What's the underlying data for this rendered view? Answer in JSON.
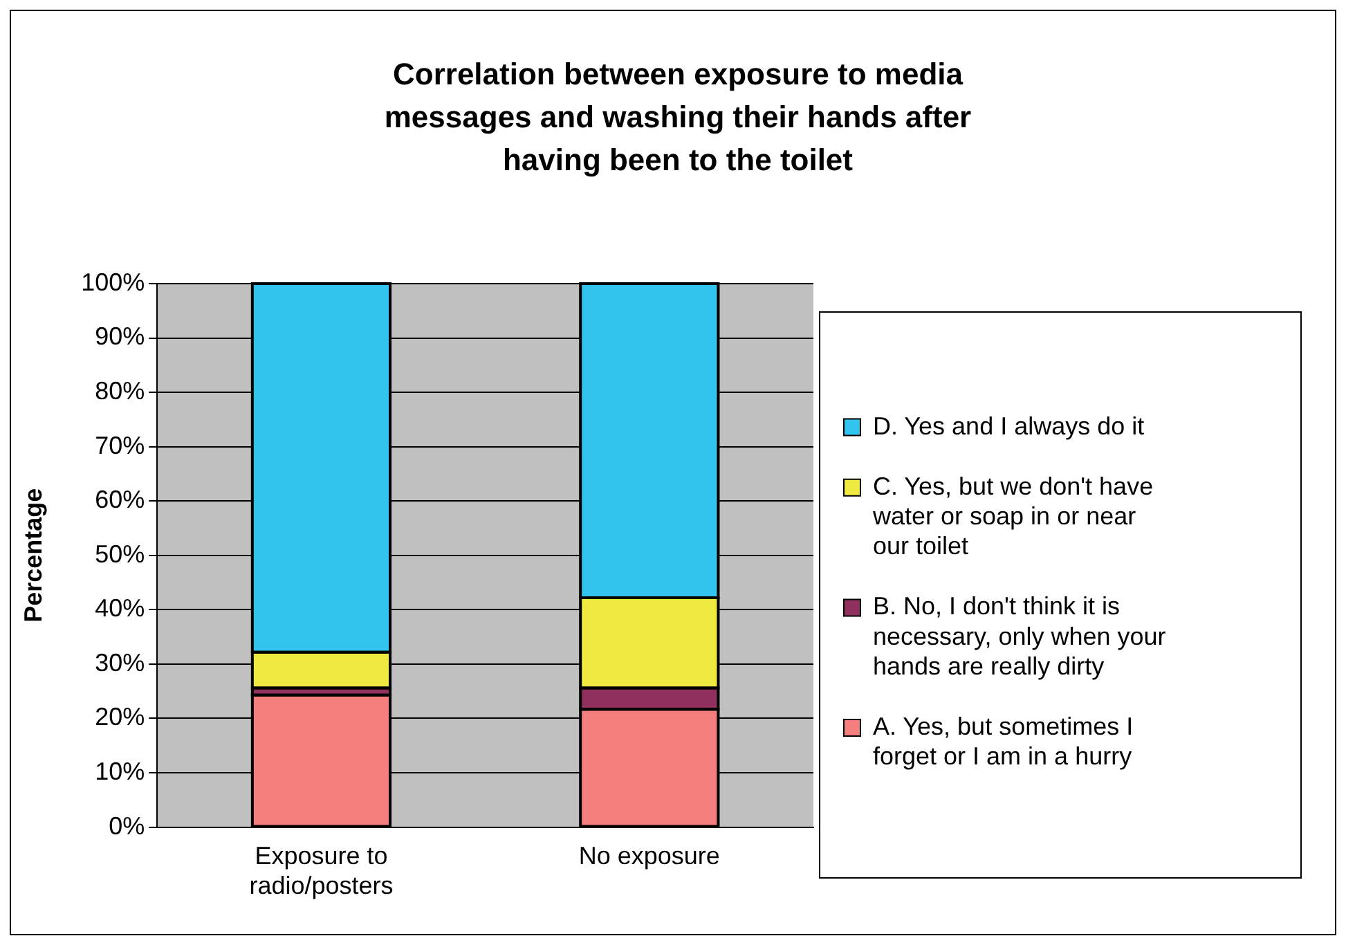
{
  "chart_data": {
    "type": "bar",
    "title": "Correlation between exposure to media messages and washing their hands after having been to the toilet",
    "ylabel": "Percentage",
    "categories": [
      "Exposure to radio/posters",
      "No exposure"
    ],
    "stacked": true,
    "series": [
      {
        "name": "A. Yes, but sometimes I forget or I am in a hurry",
        "color": "#f47f7e",
        "values": [
          24.3,
          21.7
        ]
      },
      {
        "name": "B. No, I don't think it is necessary, only when your hands are really dirty",
        "color": "#90305e",
        "values": [
          1.3,
          3.9
        ]
      },
      {
        "name": "C. Yes, but we don't have water or soap in or near our toilet",
        "color": "#eeea40",
        "values": [
          6.6,
          16.6
        ]
      },
      {
        "name": "D. Yes and I always do it",
        "color": "#33c3ef",
        "values": [
          67.8,
          57.8
        ]
      }
    ],
    "ylim": [
      0,
      100
    ],
    "yticks": [
      {
        "value": 0,
        "label": "0%"
      },
      {
        "value": 10,
        "label": "10%"
      },
      {
        "value": 20,
        "label": "20%"
      },
      {
        "value": 30,
        "label": "30%"
      },
      {
        "value": 40,
        "label": "40%"
      },
      {
        "value": 50,
        "label": "50%"
      },
      {
        "value": 60,
        "label": "60%"
      },
      {
        "value": 70,
        "label": "70%"
      },
      {
        "value": 80,
        "label": "80%"
      },
      {
        "value": 90,
        "label": "90%"
      },
      {
        "value": 100,
        "label": "100%"
      }
    ],
    "grid": "y",
    "legend": "right"
  }
}
